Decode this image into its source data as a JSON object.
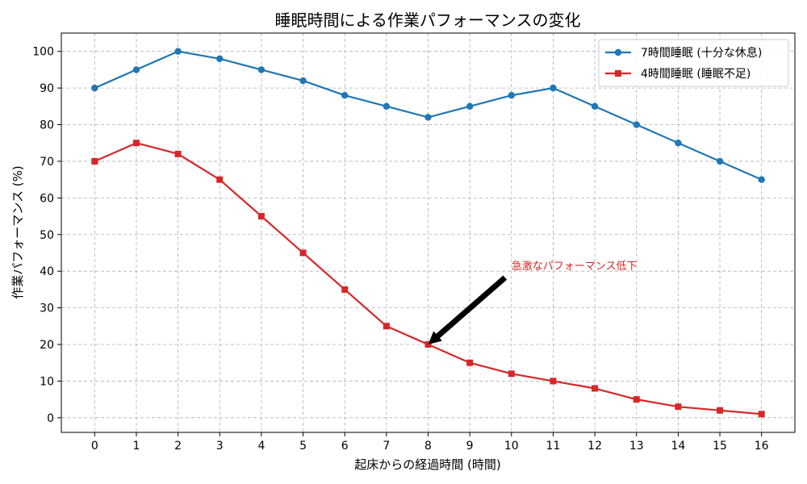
{
  "chart_data": {
    "type": "line",
    "title": "睡眠時間による作業パフォーマンスの変化",
    "xlabel": "起床からの経過時間 (時間)",
    "ylabel": "作業パフォーマンス (%)",
    "x": [
      0,
      1,
      2,
      3,
      4,
      5,
      6,
      7,
      8,
      9,
      10,
      11,
      12,
      13,
      14,
      15,
      16
    ],
    "xlim": [
      -0.8,
      16.8
    ],
    "ylim": [
      -4,
      105
    ],
    "xticks": [
      0,
      1,
      2,
      3,
      4,
      5,
      6,
      7,
      8,
      9,
      10,
      11,
      12,
      13,
      14,
      15,
      16
    ],
    "yticks": [
      0,
      10,
      20,
      30,
      40,
      50,
      60,
      70,
      80,
      90,
      100
    ],
    "grid": true,
    "legend_position": "top-right",
    "series": [
      {
        "name": "7時間睡眠 (十分な休息)",
        "color": "#1f77b4",
        "marker": "circle",
        "values": [
          90,
          95,
          100,
          98,
          95,
          92,
          88,
          85,
          82,
          85,
          88,
          90,
          85,
          80,
          75,
          70,
          65
        ]
      },
      {
        "name": "4時間睡眠 (睡眠不足)",
        "color": "#d62728",
        "marker": "square",
        "values": [
          70,
          75,
          72,
          65,
          55,
          45,
          35,
          25,
          20,
          15,
          12,
          10,
          8,
          5,
          3,
          2,
          1
        ]
      }
    ],
    "annotations": [
      {
        "text": "急激なパフォーマンス低下",
        "point": [
          8,
          20
        ],
        "text_at": [
          10,
          40
        ],
        "color": "#d62728",
        "arrow_color": "#000000"
      }
    ]
  }
}
